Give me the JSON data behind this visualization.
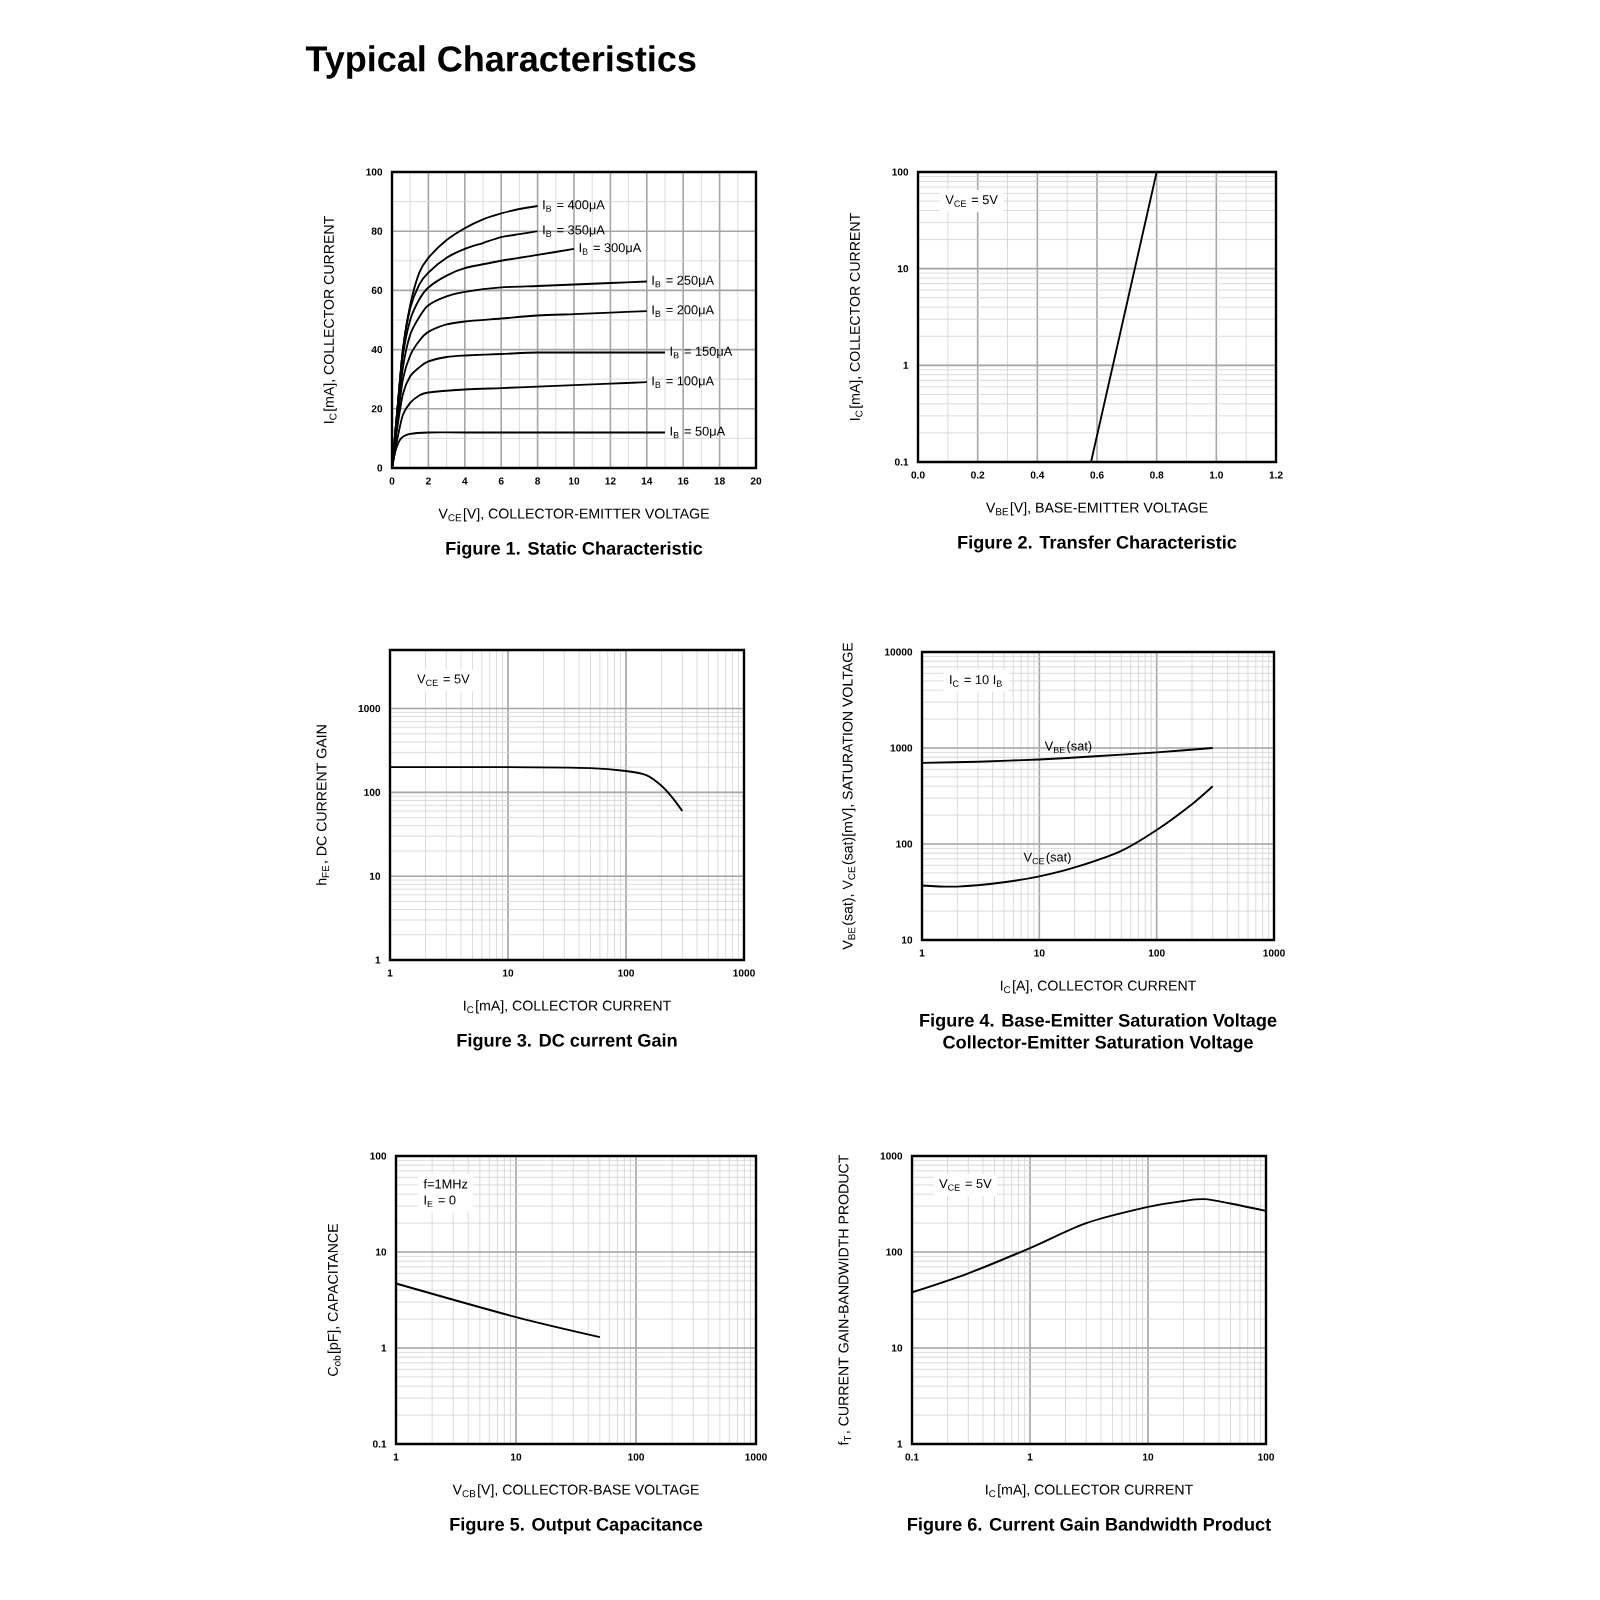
{
  "chart_data": [
    {
      "type": "other",
      "title": "Typical Characteristics"
    },
    {
      "type": "line",
      "title": "Figure 1. Static Characteristic",
      "xlabel": "V$_{CE}$[V], COLLECTOR-EMITTER VOLTAGE",
      "ylabel": "I$_{C}$[mA], COLLECTOR CURRENT",
      "xlim": [
        0,
        20
      ],
      "ylim": [
        0,
        100
      ],
      "xticks": [
        0,
        2,
        4,
        6,
        8,
        10,
        12,
        14,
        16,
        18,
        20
      ],
      "yticks": [
        0,
        20,
        40,
        60,
        80,
        100
      ],
      "grid": true,
      "series": [
        {
          "name": "I$_{B}$ = 400μA",
          "color": "#000000",
          "x": [
            0,
            0.3,
            0.6,
            1,
            1.5,
            2,
            3,
            4,
            5,
            6,
            7,
            8
          ],
          "values": [
            0,
            20,
            40,
            55,
            66,
            71,
            77,
            81,
            84,
            86,
            87.5,
            88.5
          ]
        },
        {
          "name": "I$_{B}$ = 350μA",
          "color": "#000000",
          "x": [
            0,
            0.3,
            0.6,
            1,
            1.5,
            2,
            3,
            4,
            5,
            6,
            7,
            8
          ],
          "values": [
            0,
            20,
            40,
            54,
            62,
            66,
            71,
            74,
            76,
            78,
            79,
            80
          ]
        },
        {
          "name": "I$_{B}$ = 300μA",
          "color": "#000000",
          "x": [
            0,
            0.3,
            0.6,
            1,
            1.5,
            2,
            3,
            4,
            6,
            8,
            10
          ],
          "values": [
            0,
            20,
            38,
            50,
            57,
            61,
            65,
            67.5,
            70,
            72,
            74
          ]
        },
        {
          "name": "I$_{B}$ = 250μA",
          "color": "#000000",
          "x": [
            0,
            0.3,
            0.6,
            1,
            1.5,
            2,
            3,
            4,
            6,
            8,
            10,
            12,
            14
          ],
          "values": [
            0,
            18,
            34,
            45,
            51,
            55,
            58,
            59.5,
            61,
            61.5,
            62,
            62.5,
            63
          ]
        },
        {
          "name": "I$_{B}$ = 200μA",
          "color": "#000000",
          "x": [
            0,
            0.3,
            0.6,
            1,
            1.5,
            2,
            3,
            4,
            6,
            8,
            10,
            12,
            14
          ],
          "values": [
            0,
            16,
            30,
            38,
            43,
            46,
            48.5,
            49.5,
            50.5,
            51.5,
            52,
            52.5,
            53
          ]
        },
        {
          "name": "I$_{B}$ = 150μA",
          "color": "#000000",
          "x": [
            0,
            0.3,
            0.6,
            1,
            1.5,
            2,
            3,
            4,
            6,
            8,
            10,
            12,
            15
          ],
          "values": [
            0,
            14,
            25,
            31,
            34,
            36,
            37.5,
            38,
            38.5,
            39,
            39,
            39,
            39
          ]
        },
        {
          "name": "I$_{B}$ = 100μA",
          "color": "#000000",
          "x": [
            0,
            0.3,
            0.6,
            1,
            1.5,
            2,
            4,
            6,
            8,
            10,
            12,
            14
          ],
          "values": [
            0,
            10,
            18,
            22,
            24.5,
            25.5,
            26.5,
            27,
            27.5,
            28,
            28.5,
            29
          ]
        },
        {
          "name": "I$_{B}$ = 50μA",
          "color": "#000000",
          "x": [
            0,
            0.2,
            0.5,
            1,
            2,
            4,
            8,
            15
          ],
          "values": [
            0,
            6,
            10,
            11.5,
            12,
            12,
            12,
            12
          ]
        }
      ]
    },
    {
      "type": "line",
      "title": "Figure 2. Transfer Characteristic",
      "xlabel": "V$_{BE}$[V], BASE-EMITTER VOLTAGE",
      "ylabel": "I$_{C}$[mA], COLLECTOR CURRENT",
      "annotations": [
        "V$_{CE}$ = 5V"
      ],
      "log": "y",
      "xlim": [
        0,
        1.2
      ],
      "ylim": [
        0.1,
        100
      ],
      "xticks": [
        {
          "value": 0,
          "label": "0.0"
        },
        0.2,
        0.4,
        0.6,
        0.8,
        {
          "value": 1,
          "label": "1.0"
        },
        1.2
      ],
      "yticks": [
        0.1,
        1,
        10,
        100
      ],
      "grid": true,
      "series": [
        {
          "color": "#000000",
          "x": [
            0.58,
            0.8
          ],
          "values": [
            0.1,
            100
          ]
        }
      ]
    },
    {
      "type": "line",
      "title": "Figure 3. DC current Gain",
      "xlabel": "I$_{C}$[mA], COLLECTOR CURRENT",
      "ylabel": "h$_{FE}$, DC CURRENT GAIN",
      "annotations": [
        "V$_{CE}$ = 5V"
      ],
      "log": "xy",
      "xlim": [
        1,
        1000
      ],
      "ylim": [
        1,
        5000
      ],
      "xticks": [
        1,
        10,
        100,
        1000
      ],
      "yticks": [
        1,
        10,
        100,
        1000
      ],
      "grid": true,
      "series": [
        {
          "color": "#000000",
          "x": [
            1,
            10,
            50,
            100,
            150,
            200,
            250,
            300
          ],
          "values": [
            200,
            200,
            195,
            180,
            160,
            120,
            85,
            60
          ]
        }
      ]
    },
    {
      "type": "line",
      "title": "Figure 4. Base-Emitter Saturation Voltage",
      "subtitle": "Collector-Emitter Saturation Voltage",
      "xlabel": "I$_{C}$[A], COLLECTOR CURRENT",
      "ylabel": "V$_{BE}$(sat), V$_{CE}$(sat)[mV], SATURATION VOLTAGE",
      "annotations": [
        "I$_{C}$ = 10 I$_{B}$"
      ],
      "log": "xy",
      "xlim": [
        1,
        1000
      ],
      "ylim": [
        10,
        10000
      ],
      "xticks": [
        1,
        10,
        100,
        1000
      ],
      "yticks": [
        10,
        100,
        1000,
        10000
      ],
      "grid": true,
      "series": [
        {
          "name": "V$_{BE}$(sat)",
          "color": "#000000",
          "x": [
            1,
            3,
            10,
            30,
            100,
            300
          ],
          "values": [
            700,
            720,
            760,
            820,
            900,
            1000
          ]
        },
        {
          "name": "V$_{CE}$(sat)",
          "color": "#000000",
          "x": [
            1,
            2,
            5,
            10,
            20,
            50,
            100,
            200,
            300
          ],
          "values": [
            37,
            36,
            40,
            46,
            57,
            85,
            140,
            260,
            400
          ]
        }
      ]
    },
    {
      "type": "line",
      "title": "Figure 5. Output Capacitance",
      "xlabel": "V$_{CB}$[V], COLLECTOR-BASE VOLTAGE",
      "ylabel": "C$_{ob}$[pF], CAPACITANCE",
      "annotations": [
        "f=1MHz",
        "I$_{E}$ = 0"
      ],
      "log": "xy",
      "xlim": [
        1,
        1000
      ],
      "ylim": [
        0.1,
        100
      ],
      "xticks": [
        1,
        10,
        100,
        1000
      ],
      "yticks": [
        0.1,
        1,
        10,
        100
      ],
      "grid": true,
      "series": [
        {
          "color": "#000000",
          "x": [
            1,
            10,
            50
          ],
          "values": [
            4.7,
            2.1,
            1.3
          ]
        }
      ]
    },
    {
      "type": "line",
      "title": "Figure 6. Current Gain Bandwidth Product",
      "xlabel": "I$_{C}$[mA], COLLECTOR CURRENT",
      "ylabel": "f$_{T}$, CURRENT GAIN-BANDWIDTH PRODUCT",
      "annotations": [
        "V$_{CE}$ = 5V"
      ],
      "log": "xy",
      "xlim": [
        0.1,
        100
      ],
      "ylim": [
        1,
        1000
      ],
      "xticks": [
        0.1,
        1,
        10,
        100
      ],
      "yticks": [
        1,
        10,
        100,
        1000
      ],
      "grid": true,
      "series": [
        {
          "color": "#000000",
          "x": [
            0.1,
            0.3,
            1,
            3,
            10,
            20,
            30,
            50,
            100
          ],
          "values": [
            38,
            60,
            110,
            200,
            295,
            340,
            355,
            320,
            268
          ]
        }
      ]
    }
  ]
}
